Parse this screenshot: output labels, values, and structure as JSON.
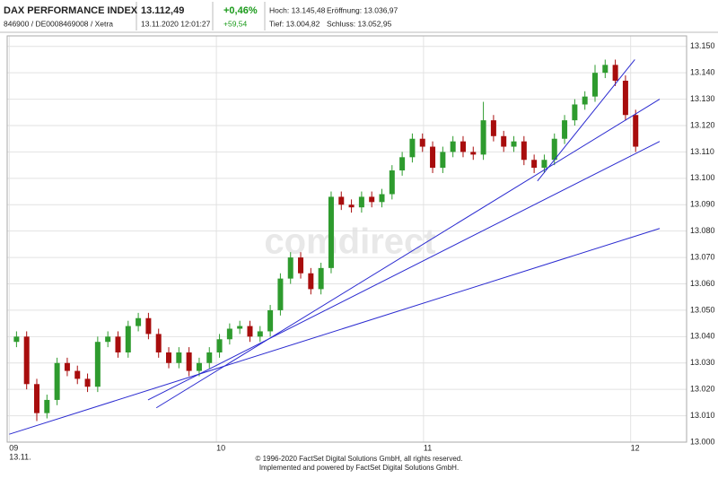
{
  "header": {
    "title": "DAX PERFORMANCE INDEX",
    "subtitle": "846900 / DE0008469008 / Xetra",
    "price": "13.112,49",
    "timestamp": "13.11.2020 12:01:27",
    "change_pct": "+0,46%",
    "change_abs": "+59,54",
    "high": "Hoch: 13.145,48",
    "low": "Tief: 13.004,82",
    "open": "Eröffnung: 13.036,97",
    "close": "Schluss: 13.052,95"
  },
  "chart_data": {
    "type": "candlestick",
    "watermark": "comdirect",
    "x": [
      9.035,
      9.084,
      9.133,
      9.182,
      9.231,
      9.28,
      9.329,
      9.378,
      9.427,
      9.476,
      9.525,
      9.574,
      9.623,
      9.672,
      9.721,
      9.77,
      9.819,
      9.868,
      9.917,
      9.966,
      10.015,
      10.064,
      10.113,
      10.162,
      10.211,
      10.26,
      10.309,
      10.358,
      10.407,
      10.456,
      10.505,
      10.554,
      10.603,
      10.652,
      10.701,
      10.75,
      10.799,
      10.848,
      10.897,
      10.946,
      10.995,
      11.044,
      11.093,
      11.142,
      11.191,
      11.24,
      11.289,
      11.338,
      11.387,
      11.436,
      11.485,
      11.534,
      11.583,
      11.632,
      11.681,
      11.73,
      11.779,
      11.828,
      11.877,
      11.926,
      11.975,
      12.024
    ],
    "open": [
      13038,
      13040,
      13022,
      13011,
      13016,
      13030,
      13027,
      13024,
      13021,
      13038,
      13040,
      13034,
      13044,
      13047,
      13041,
      13034,
      13030,
      13034,
      13027,
      13030,
      13034,
      13039,
      13043,
      13044,
      13040,
      13042,
      13050,
      13062,
      13070,
      13064,
      13058,
      13066,
      13093,
      13090,
      13089,
      13093,
      13091,
      13094,
      13103,
      13108,
      13115,
      13112,
      13104,
      13110,
      13114,
      13110,
      13109,
      13122,
      13116,
      13112,
      13114,
      13107,
      13104,
      13107,
      13115,
      13122,
      13128,
      13131,
      13140,
      13143,
      13137,
      13124
    ],
    "high": [
      13042,
      13042,
      13024,
      13018,
      13032,
      13032,
      13029,
      13026,
      13040,
      13042,
      13042,
      13046,
      13049,
      13049,
      13043,
      13036,
      13036,
      13036,
      13032,
      13036,
      13041,
      13045,
      13046,
      13046,
      13044,
      13052,
      13064,
      13072,
      13072,
      13066,
      13068,
      13095,
      13095,
      13092,
      13095,
      13095,
      13096,
      13105,
      13110,
      13117,
      13117,
      13114,
      13112,
      13116,
      13116,
      13112,
      13129,
      13124,
      13118,
      13116,
      13116,
      13109,
      13109,
      13117,
      13124,
      13130,
      13133,
      13143,
      13145,
      13145,
      13139,
      13126
    ],
    "low": [
      13036,
      13020,
      13008,
      13009,
      13014,
      13025,
      13022,
      13019,
      13019,
      13036,
      13032,
      13032,
      13042,
      13039,
      13032,
      13028,
      13028,
      13025,
      13025,
      13028,
      13032,
      13037,
      13041,
      13038,
      13038,
      13040,
      13048,
      13060,
      13062,
      13056,
      13056,
      13064,
      13088,
      13087,
      13087,
      13089,
      13089,
      13092,
      13101,
      13106,
      13110,
      13102,
      13102,
      13108,
      13108,
      13107,
      13107,
      13114,
      13110,
      13110,
      13105,
      13102,
      13102,
      13105,
      13113,
      13120,
      13126,
      13129,
      13138,
      13135,
      13122,
      13110
    ],
    "close": [
      13040,
      13022,
      13011,
      13016,
      13030,
      13027,
      13024,
      13021,
      13038,
      13040,
      13034,
      13044,
      13047,
      13041,
      13034,
      13030,
      13034,
      13027,
      13030,
      13034,
      13039,
      13043,
      13044,
      13040,
      13042,
      13050,
      13062,
      13070,
      13064,
      13058,
      13066,
      13093,
      13090,
      13089,
      13093,
      13091,
      13094,
      13103,
      13108,
      13115,
      13112,
      13104,
      13110,
      13114,
      13110,
      13109,
      13122,
      13116,
      13112,
      13114,
      13107,
      13104,
      13107,
      13115,
      13122,
      13128,
      13131,
      13140,
      13143,
      13137,
      13124,
      13112
    ],
    "up_color": "#2e9b2e",
    "down_color": "#a80d0d",
    "line_color": "#2a2ad0",
    "trend_lines": [
      {
        "x": [
          9.0,
          12.14
        ],
        "y": [
          13003,
          13081
        ]
      },
      {
        "x": [
          9.67,
          12.14
        ],
        "y": [
          13016,
          13114
        ]
      },
      {
        "x": [
          9.71,
          12.14
        ],
        "y": [
          13013,
          13130
        ]
      },
      {
        "x": [
          11.55,
          12.02
        ],
        "y": [
          13099,
          13145
        ]
      }
    ],
    "xlim": [
      8.99,
      12.27
    ],
    "ylim": [
      13000,
      13154
    ],
    "xticks": [
      {
        "value": 9,
        "label": "09"
      },
      {
        "value": 10,
        "label": "10"
      },
      {
        "value": 11,
        "label": "11"
      },
      {
        "value": 12,
        "label": "12"
      }
    ],
    "x_date_label": "13.11.",
    "yticks": [
      {
        "value": 13000,
        "label": "13.000"
      },
      {
        "value": 13010,
        "label": "13.010"
      },
      {
        "value": 13020,
        "label": "13.020"
      },
      {
        "value": 13030,
        "label": "13.030"
      },
      {
        "value": 13040,
        "label": "13.040"
      },
      {
        "value": 13050,
        "label": "13.050"
      },
      {
        "value": 13060,
        "label": "13.060"
      },
      {
        "value": 13070,
        "label": "13.070"
      },
      {
        "value": 13080,
        "label": "13.080"
      },
      {
        "value": 13090,
        "label": "13.090"
      },
      {
        "value": 13100,
        "label": "13.100"
      },
      {
        "value": 13110,
        "label": "13.110"
      },
      {
        "value": 13120,
        "label": "13.120"
      },
      {
        "value": 13130,
        "label": "13.130"
      },
      {
        "value": 13140,
        "label": "13.140"
      },
      {
        "value": 13150,
        "label": "13.150"
      }
    ],
    "grid": true,
    "footer": [
      "© 1996-2020 FactSet Digital Solutions GmbH, all rights reserved.",
      "Implemented and powered by FactSet Digital Solutions GmbH."
    ]
  }
}
